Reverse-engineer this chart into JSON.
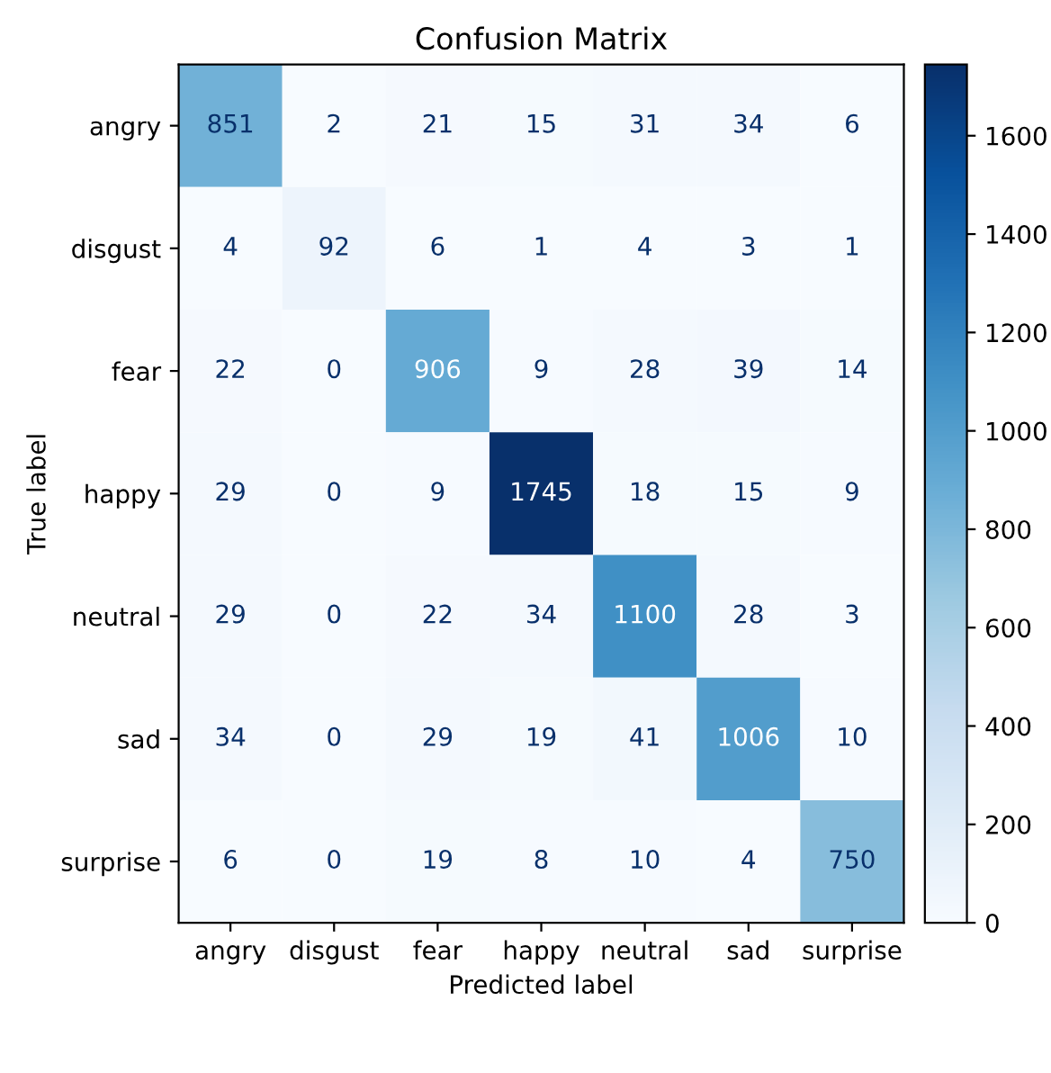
{
  "chart_data": {
    "type": "heatmap",
    "title": "Confusion Matrix",
    "xlabel": "Predicted label",
    "ylabel": "True label",
    "categories": [
      "angry",
      "disgust",
      "fear",
      "happy",
      "neutral",
      "sad",
      "surprise"
    ],
    "y_categories": [
      "angry",
      "disgust",
      "fear",
      "happy",
      "neutral",
      "sad",
      "surprise"
    ],
    "cells": [
      [
        851,
        2,
        21,
        15,
        31,
        34,
        6
      ],
      [
        4,
        92,
        6,
        1,
        4,
        3,
        1
      ],
      [
        22,
        0,
        906,
        9,
        28,
        39,
        14
      ],
      [
        29,
        0,
        9,
        1745,
        18,
        15,
        9
      ],
      [
        29,
        0,
        22,
        34,
        1100,
        28,
        3
      ],
      [
        34,
        0,
        29,
        19,
        41,
        1006,
        10
      ],
      [
        6,
        0,
        19,
        8,
        10,
        4,
        750
      ]
    ],
    "clim": [
      0,
      1745
    ],
    "cticks": [
      0,
      200,
      400,
      600,
      800,
      1000,
      1200,
      1400,
      1600
    ],
    "data_labels": true,
    "grid": false
  }
}
